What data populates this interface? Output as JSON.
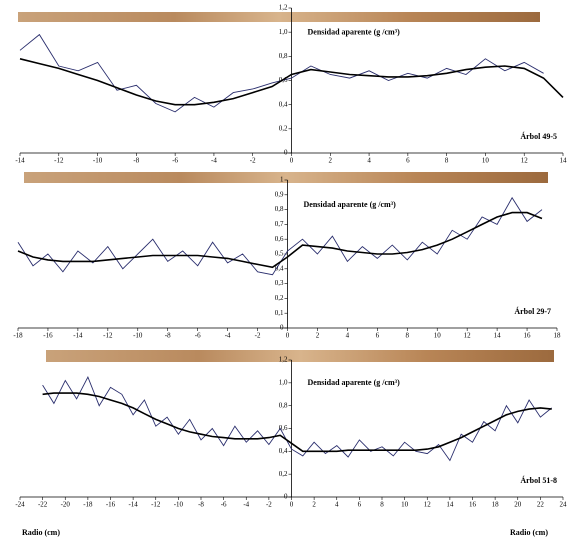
{
  "chart_data": [
    {
      "type": "line",
      "y_label": "Densidad aparente (g /cm³)",
      "label": "Árbol 49-5",
      "x": [
        -14,
        -13,
        -12,
        -11,
        -10,
        -9,
        -8,
        -7,
        -6,
        -5,
        -4,
        -3,
        -2,
        -1,
        0,
        1,
        2,
        3,
        4,
        5,
        6,
        7,
        8,
        9,
        10,
        11,
        12,
        13,
        14
      ],
      "xlim": [
        -14,
        14
      ],
      "ylim": [
        0,
        1.2
      ],
      "xticks": [
        -14,
        -12,
        -10,
        -8,
        -6,
        -4,
        -2,
        0,
        2,
        4,
        6,
        8,
        10,
        12,
        14
      ],
      "yticks": [
        0,
        {
          "value": 0.2,
          "label": "0,2"
        },
        {
          "value": 0.4,
          "label": "0,4"
        },
        {
          "value": 0.6,
          "label": "0,6"
        },
        {
          "value": 0.8,
          "label": "0,8"
        },
        {
          "value": 1.0,
          "label": "1,0"
        },
        {
          "value": 1.2,
          "label": "1,2"
        }
      ],
      "series": [
        {
          "color": "#2b2f6e",
          "values": [
            0.85,
            0.98,
            0.72,
            0.68,
            0.75,
            0.52,
            0.56,
            0.41,
            0.34,
            0.46,
            0.38,
            0.5,
            0.53,
            0.58,
            0.62,
            0.72,
            0.65,
            0.62,
            0.68,
            0.6,
            0.66,
            0.62,
            0.7,
            0.65,
            0.78,
            0.68,
            0.75,
            0.66,
            null
          ]
        },
        {
          "color": "#000000",
          "values": [
            0.78,
            0.74,
            0.7,
            0.65,
            0.6,
            0.54,
            0.48,
            0.43,
            0.4,
            0.4,
            0.42,
            0.45,
            0.5,
            0.55,
            0.65,
            0.69,
            0.67,
            0.65,
            0.64,
            0.63,
            0.63,
            0.64,
            0.66,
            0.69,
            0.71,
            0.72,
            0.7,
            0.62,
            0.46
          ]
        }
      ]
    },
    {
      "type": "line",
      "y_label": "Densidad aparente (g /cm³)",
      "label": "Árbol 29-7",
      "x": [
        -18,
        -17,
        -16,
        -15,
        -14,
        -13,
        -12,
        -11,
        -10,
        -9,
        -8,
        -7,
        -6,
        -5,
        -4,
        -3,
        -2,
        -1,
        0,
        1,
        2,
        3,
        4,
        5,
        6,
        7,
        8,
        9,
        10,
        11,
        12,
        13,
        14,
        15,
        16,
        17,
        18
      ],
      "xlim": [
        -18,
        18
      ],
      "ylim": [
        0,
        1
      ],
      "xticks": [
        -18,
        -16,
        -14,
        -12,
        -10,
        -8,
        -6,
        -4,
        -2,
        0,
        2,
        4,
        6,
        8,
        10,
        12,
        14,
        16,
        18
      ],
      "yticks": [
        0,
        {
          "value": 0.1,
          "label": "0,1"
        },
        {
          "value": 0.2,
          "label": "0,2"
        },
        {
          "value": 0.3,
          "label": "0,3"
        },
        {
          "value": 0.4,
          "label": "0,4"
        },
        {
          "value": 0.5,
          "label": "0,5"
        },
        {
          "value": 0.6,
          "label": "0,6"
        },
        {
          "value": 0.7,
          "label": "0,7"
        },
        {
          "value": 0.8,
          "label": "0,8"
        },
        {
          "value": 0.9,
          "label": "0,9"
        },
        1
      ],
      "series": [
        {
          "color": "#2b2f6e",
          "values": [
            0.58,
            0.42,
            0.5,
            0.38,
            0.52,
            0.44,
            0.55,
            0.4,
            0.5,
            0.6,
            0.45,
            0.52,
            0.42,
            0.58,
            0.44,
            0.5,
            0.38,
            0.36,
            0.52,
            0.6,
            0.5,
            0.62,
            0.45,
            0.55,
            0.47,
            0.56,
            0.46,
            0.58,
            0.5,
            0.66,
            0.6,
            0.75,
            0.7,
            0.88,
            0.72,
            0.8,
            null
          ]
        },
        {
          "color": "#000000",
          "values": [
            0.52,
            0.48,
            0.46,
            0.45,
            0.45,
            0.45,
            0.46,
            0.47,
            0.48,
            0.49,
            0.49,
            0.49,
            0.49,
            0.48,
            0.47,
            0.45,
            0.43,
            0.41,
            0.48,
            0.56,
            0.55,
            0.54,
            0.52,
            0.51,
            0.5,
            0.5,
            0.51,
            0.53,
            0.56,
            0.6,
            0.65,
            0.7,
            0.75,
            0.78,
            0.78,
            0.74,
            null
          ]
        }
      ]
    },
    {
      "type": "line",
      "y_label": "Densidad aparente (g /cm³)",
      "label": "Árbol 51-8",
      "xlabel": "Radio (cm)",
      "x": [
        -24,
        -23,
        -22,
        -21,
        -20,
        -19,
        -18,
        -17,
        -16,
        -15,
        -14,
        -13,
        -12,
        -11,
        -10,
        -9,
        -8,
        -7,
        -6,
        -5,
        -4,
        -3,
        -2,
        -1,
        0,
        1,
        2,
        3,
        4,
        5,
        6,
        7,
        8,
        9,
        10,
        11,
        12,
        13,
        14,
        15,
        16,
        17,
        18,
        19,
        20,
        21,
        22,
        23,
        24
      ],
      "xlim": [
        -24,
        24
      ],
      "ylim": [
        0,
        1.2
      ],
      "xticks": [
        -24,
        -22,
        -20,
        -18,
        -16,
        -14,
        -12,
        -10,
        -8,
        -6,
        -4,
        -2,
        0,
        2,
        4,
        6,
        8,
        10,
        12,
        14,
        16,
        18,
        20,
        22,
        24
      ],
      "yticks": [
        0,
        {
          "value": 0.2,
          "label": "0,2"
        },
        {
          "value": 0.4,
          "label": "0,4"
        },
        {
          "value": 0.6,
          "label": "0,6"
        },
        {
          "value": 0.8,
          "label": "0,8"
        },
        {
          "value": 1.0,
          "label": "1,0"
        },
        {
          "value": 1.2,
          "label": "1,2"
        }
      ],
      "series": [
        {
          "color": "#2b2f6e",
          "values": [
            null,
            null,
            0.98,
            0.82,
            1.02,
            0.86,
            1.05,
            0.8,
            0.96,
            0.9,
            0.72,
            0.85,
            0.62,
            0.7,
            0.55,
            0.68,
            0.5,
            0.6,
            0.45,
            0.62,
            0.48,
            0.58,
            0.46,
            0.6,
            0.42,
            0.36,
            0.48,
            0.38,
            0.45,
            0.35,
            0.5,
            0.4,
            0.44,
            0.36,
            0.48,
            0.4,
            0.38,
            0.46,
            0.32,
            0.55,
            0.48,
            0.66,
            0.58,
            0.8,
            0.65,
            0.85,
            0.7,
            0.78,
            null
          ]
        },
        {
          "color": "#000000",
          "values": [
            null,
            null,
            0.9,
            0.91,
            0.91,
            0.91,
            0.9,
            0.88,
            0.85,
            0.82,
            0.78,
            0.73,
            0.68,
            0.64,
            0.6,
            0.57,
            0.55,
            0.53,
            0.52,
            0.51,
            0.51,
            0.51,
            0.52,
            0.54,
            0.47,
            0.4,
            0.4,
            0.4,
            0.4,
            0.41,
            0.41,
            0.41,
            0.41,
            0.41,
            0.41,
            0.41,
            0.42,
            0.44,
            0.48,
            0.52,
            0.57,
            0.62,
            0.67,
            0.72,
            0.75,
            0.77,
            0.78,
            0.77,
            null
          ]
        }
      ]
    }
  ]
}
